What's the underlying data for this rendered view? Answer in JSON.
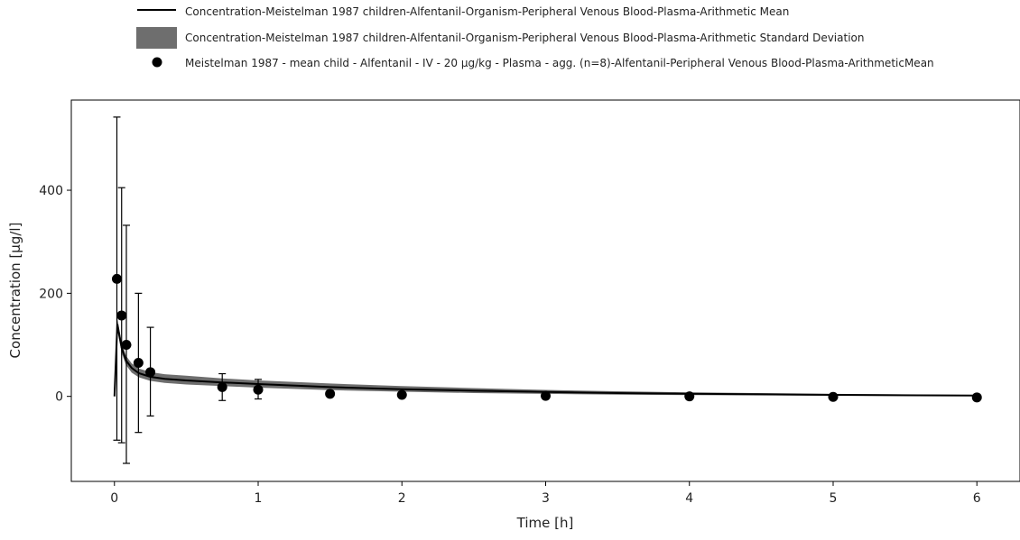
{
  "chart_data": {
    "type": "line",
    "xlabel": "Time [h]",
    "ylabel": "Concentration [µg/l]",
    "xlim": [
      -0.3,
      6.3
    ],
    "ylim": [
      -165,
      575
    ],
    "x_ticks": [
      0,
      1,
      2,
      3,
      4,
      5,
      6
    ],
    "y_ticks": [
      0,
      200,
      400
    ],
    "grid": false,
    "legend_position": "top",
    "colors": {
      "line": "#000000",
      "band": "#6e6e6e",
      "points": "#000000"
    },
    "legend": [
      {
        "type": "line",
        "label": "Concentration-Meistelman 1987 children-Alfentanil-Organism-Peripheral Venous Blood-Plasma-Arithmetic Mean"
      },
      {
        "type": "band",
        "label": "Concentration-Meistelman 1987 children-Alfentanil-Organism-Peripheral Venous Blood-Plasma-Arithmetic Standard Deviation"
      },
      {
        "type": "points",
        "label": "Meistelman 1987 - mean child - Alfentanil - IV - 20 µg/kg - Plasma - agg. (n=8)-Alfentanil-Peripheral Venous Blood-Plasma-ArithmeticMean"
      }
    ],
    "series": [
      {
        "kind": "line",
        "x": [
          0,
          0.02,
          0.05,
          0.08,
          0.12,
          0.17,
          0.25,
          0.35,
          0.5,
          0.75,
          1.0,
          1.5,
          2.0,
          2.5,
          3.0,
          3.5,
          4.0,
          5.0,
          6.0
        ],
        "values": [
          0,
          140,
          95,
          70,
          55,
          45,
          38,
          34,
          31,
          27,
          24,
          18,
          14,
          11,
          8.5,
          6.5,
          5,
          3,
          1.5
        ]
      },
      {
        "kind": "band",
        "x": [
          0.02,
          0.05,
          0.08,
          0.12,
          0.17,
          0.25,
          0.35,
          0.5,
          0.75,
          1.0,
          1.5,
          2.0,
          2.5,
          3.0,
          3.5,
          4.0,
          5.0,
          6.0
        ],
        "lower": [
          128,
          85,
          61,
          46,
          37,
          30,
          26,
          23,
          20,
          17,
          12,
          9,
          6.5,
          4.8,
          3.5,
          2.5,
          1.3,
          0.4
        ],
        "upper": [
          152,
          105,
          79,
          64,
          54,
          47,
          43,
          40,
          35,
          31,
          25,
          20,
          16,
          12.5,
          10,
          7.8,
          4.8,
          2.7
        ]
      },
      {
        "kind": "points",
        "x": [
          0.017,
          0.05,
          0.083,
          0.167,
          0.25,
          0.75,
          1.0,
          1.5,
          2.0,
          3.0,
          4.0,
          5.0,
          6.0
        ],
        "values": [
          228,
          157,
          100,
          65,
          47,
          18,
          13,
          5,
          3,
          1,
          0,
          -1,
          -2
        ],
        "err_low": [
          -85,
          -90,
          -130,
          -70,
          -38,
          -8,
          -5,
          null,
          null,
          null,
          null,
          null,
          null
        ],
        "err_high": [
          542,
          405,
          332,
          200,
          134,
          44,
          33,
          null,
          null,
          null,
          null,
          null,
          null
        ]
      }
    ]
  }
}
